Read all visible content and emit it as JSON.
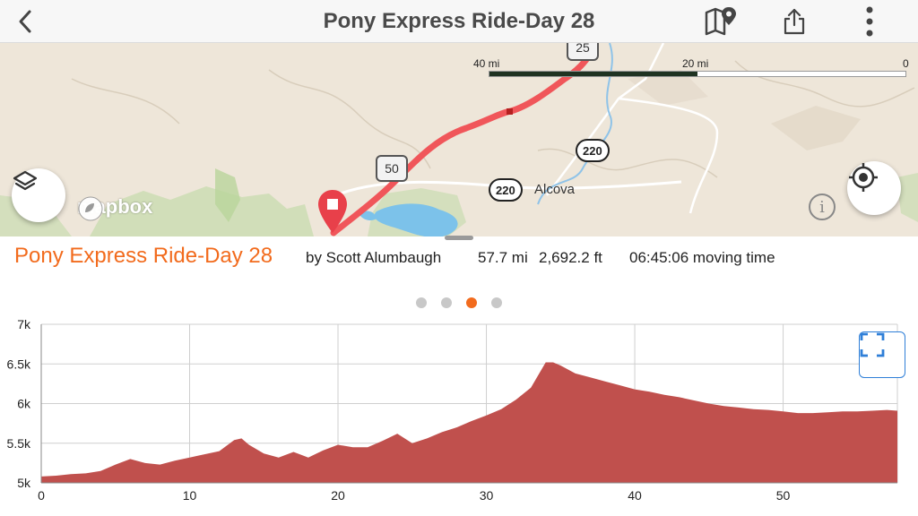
{
  "header": {
    "title": "Pony Express Ride-Day 28",
    "back_icon": "chevron-left-icon",
    "map_icon": "map-pin-icon",
    "share_icon": "share-icon",
    "more_icon": "more-vertical-icon"
  },
  "map": {
    "scale_labels": [
      "40 mi",
      "20 mi",
      "0"
    ],
    "scale_fill_fraction": 0.5,
    "highway_50": "50",
    "highway_25": "25",
    "shields": [
      "220",
      "220"
    ],
    "town": "Alcova",
    "logo_text": "mapbox",
    "info_label": "i",
    "route_color": "#f0565a"
  },
  "route": {
    "title": "Pony Express Ride-Day 28",
    "author": "by Scott Alumbaugh",
    "distance": "57.7 mi",
    "elevation_gain": "2,692.2 ft",
    "moving_time": "06:45:06 moving time"
  },
  "pager": {
    "count": 4,
    "active_index": 2
  },
  "chart_data": {
    "type": "area",
    "title": "",
    "xlabel": "",
    "ylabel": "",
    "xlim": [
      0,
      57.7
    ],
    "ylim": [
      5000,
      7000
    ],
    "x_ticks": [
      0,
      10,
      20,
      30,
      40,
      50
    ],
    "y_ticks": [
      5000,
      5500,
      6000,
      6500,
      7000
    ],
    "x_tick_labels": [
      "0",
      "10",
      "20",
      "30",
      "40",
      "50"
    ],
    "y_tick_labels": [
      "5k",
      "5.5k",
      "6k",
      "6.5k",
      "7k"
    ],
    "grid": true,
    "fill_color": "#c0504d",
    "x": [
      0,
      1,
      2,
      3,
      4,
      5,
      6,
      7,
      8,
      9,
      10,
      11,
      12,
      13,
      13.5,
      14,
      15,
      16,
      17,
      18,
      19,
      20,
      21,
      22,
      23,
      24,
      25,
      26,
      27,
      28,
      29,
      30,
      31,
      32,
      33,
      34,
      34.5,
      35,
      36,
      37,
      38,
      39,
      40,
      41,
      42,
      43,
      44,
      45,
      46,
      47,
      48,
      49,
      50,
      51,
      52,
      53,
      54,
      55,
      56,
      57,
      57.7
    ],
    "y": [
      5080,
      5090,
      5110,
      5120,
      5150,
      5230,
      5300,
      5250,
      5230,
      5280,
      5320,
      5360,
      5400,
      5540,
      5560,
      5480,
      5370,
      5320,
      5390,
      5320,
      5410,
      5480,
      5450,
      5450,
      5530,
      5620,
      5500,
      5560,
      5640,
      5700,
      5780,
      5850,
      5930,
      6050,
      6200,
      6520,
      6520,
      6480,
      6380,
      6330,
      6280,
      6230,
      6180,
      6150,
      6110,
      6080,
      6040,
      6000,
      5970,
      5950,
      5930,
      5920,
      5900,
      5880,
      5880,
      5890,
      5900,
      5900,
      5910,
      5920,
      5910
    ]
  }
}
